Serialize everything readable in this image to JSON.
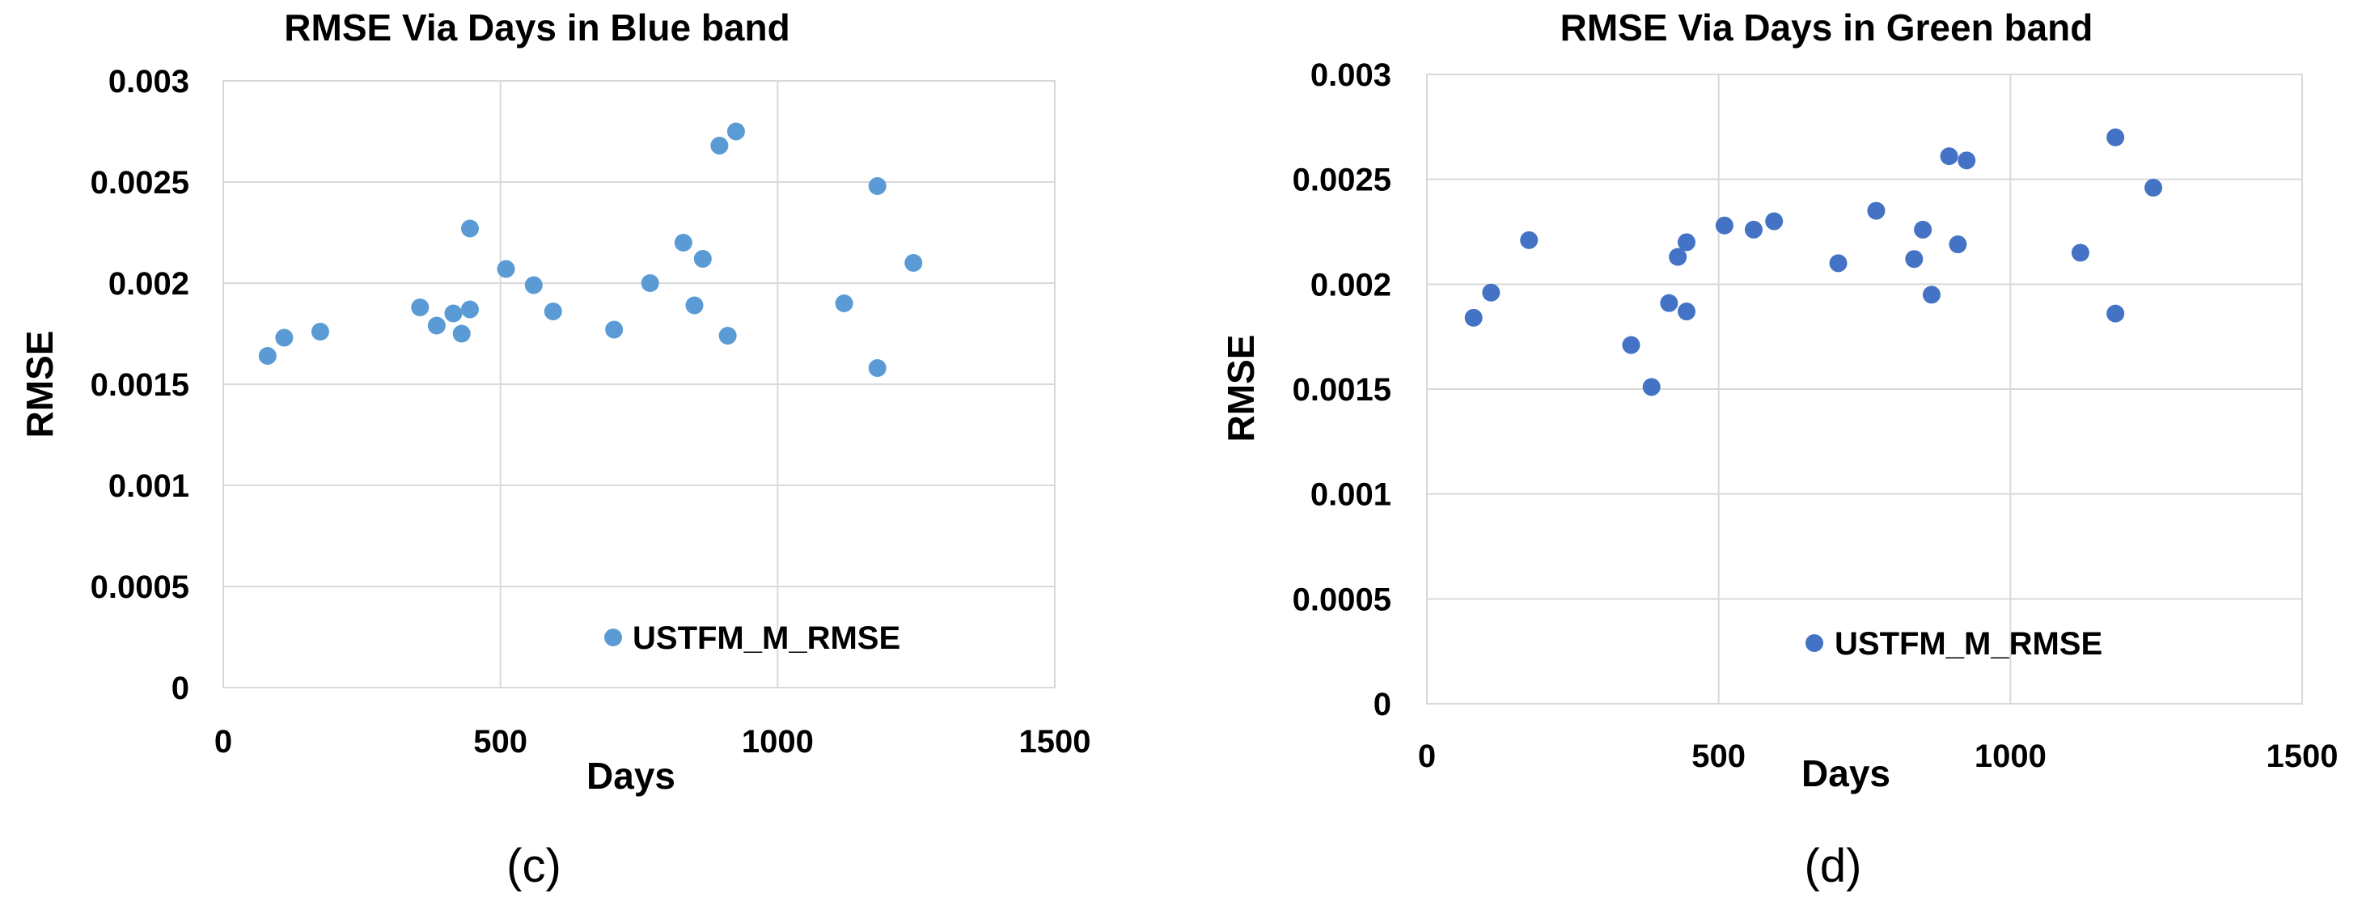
{
  "chart_data": [
    {
      "type": "scatter",
      "title": "RMSE Via Days in Blue band",
      "xlabel": "Days",
      "ylabel": "RMSE",
      "xlim": [
        0,
        1500
      ],
      "ylim": [
        0,
        0.003
      ],
      "xticks": [
        "0",
        "500",
        "1000",
        "1500"
      ],
      "yticks": [
        "0",
        "0.0005",
        "0.001",
        "0.0015",
        "0.002",
        "0.0025",
        "0.003"
      ],
      "grid": true,
      "legend_position": "bottom-center",
      "color": "#5b9bd5",
      "caption": "(c)",
      "series": [
        {
          "name": "USTFM_M_RMSE",
          "points": [
            [
              80,
              0.00164
            ],
            [
              110,
              0.00173
            ],
            [
              175,
              0.00176
            ],
            [
              355,
              0.00188
            ],
            [
              385,
              0.00179
            ],
            [
              415,
              0.00185
            ],
            [
              430,
              0.00175
            ],
            [
              445,
              0.00187
            ],
            [
              445,
              0.00227
            ],
            [
              510,
              0.00207
            ],
            [
              560,
              0.00199
            ],
            [
              595,
              0.00186
            ],
            [
              705,
              0.00177
            ],
            [
              770,
              0.002
            ],
            [
              830,
              0.0022
            ],
            [
              850,
              0.00189
            ],
            [
              865,
              0.00212
            ],
            [
              895,
              0.00268
            ],
            [
              910,
              0.00174
            ],
            [
              925,
              0.00275
            ],
            [
              1120,
              0.0019
            ],
            [
              1180,
              0.00248
            ],
            [
              1180,
              0.00158
            ],
            [
              1245,
              0.0021
            ]
          ]
        }
      ]
    },
    {
      "type": "scatter",
      "title": "RMSE Via Days in Green band",
      "xlabel": "Days",
      "ylabel": "RMSE",
      "xlim": [
        0,
        1500
      ],
      "ylim": [
        0,
        0.003
      ],
      "xticks": [
        "0",
        "500",
        "1000",
        "1500"
      ],
      "yticks": [
        "0",
        "0.0005",
        "0.001",
        "0.0015",
        "0.002",
        "0.0025",
        "0.003"
      ],
      "grid": true,
      "legend_position": "bottom-center",
      "color": "#4472c4",
      "caption": "(d)",
      "series": [
        {
          "name": "USTFM_M_RMSE",
          "points": [
            [
              80,
              0.00184
            ],
            [
              110,
              0.00196
            ],
            [
              175,
              0.00221
            ],
            [
              350,
              0.00171
            ],
            [
              385,
              0.00151
            ],
            [
              415,
              0.00191
            ],
            [
              430,
              0.00213
            ],
            [
              445,
              0.00187
            ],
            [
              445,
              0.0022
            ],
            [
              510,
              0.00228
            ],
            [
              560,
              0.00226
            ],
            [
              595,
              0.0023
            ],
            [
              705,
              0.0021
            ],
            [
              770,
              0.00235
            ],
            [
              835,
              0.00212
            ],
            [
              850,
              0.00226
            ],
            [
              865,
              0.00195
            ],
            [
              895,
              0.00261
            ],
            [
              910,
              0.00219
            ],
            [
              925,
              0.00259
            ],
            [
              1120,
              0.00215
            ],
            [
              1180,
              0.0027
            ],
            [
              1180,
              0.00186
            ],
            [
              1245,
              0.00246
            ]
          ]
        }
      ]
    }
  ]
}
